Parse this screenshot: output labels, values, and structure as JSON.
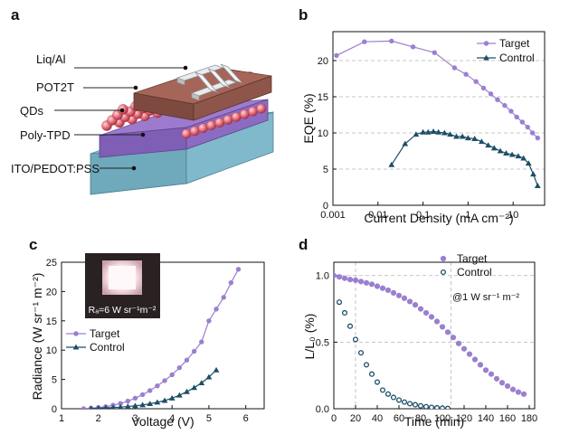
{
  "panel_labels": [
    "a",
    "b",
    "c",
    "d"
  ],
  "device": {
    "layers": [
      "Liq/Al",
      "POT2T",
      "QDs",
      "Poly-TPD",
      "ITO/PEDOT:PSS"
    ]
  },
  "colors": {
    "target": "#9b7fd0",
    "control": "#1d4e68",
    "grid": "#b5b5b5"
  },
  "chart_data": [
    {
      "type": "line",
      "panel": "b",
      "xlabel": "Current Density (mA cm⁻²)",
      "ylabel": "EQE (%)",
      "x_scale": "log",
      "xlim": [
        0.001,
        50
      ],
      "ylim": [
        0,
        24
      ],
      "xticks": [
        "0.001",
        "0.01",
        "0.1",
        "1",
        "10"
      ],
      "yticks": [
        "0",
        "5",
        "10",
        "15",
        "20"
      ],
      "grid": true,
      "legend": "top-right",
      "series": [
        {
          "name": "Target",
          "marker": "circle",
          "x": [
            0.0012,
            0.005,
            0.02,
            0.06,
            0.18,
            0.5,
            0.9,
            1.5,
            2.2,
            3.2,
            4.5,
            6.5,
            9,
            12,
            16,
            21,
            27,
            35
          ],
          "y": [
            20.7,
            22.6,
            22.7,
            21.9,
            21.1,
            19.0,
            18.1,
            17.1,
            16.2,
            15.4,
            14.6,
            13.8,
            13.0,
            12.2,
            11.5,
            10.8,
            10.0,
            9.3
          ]
        },
        {
          "name": "Control",
          "marker": "triangle",
          "x": [
            0.02,
            0.04,
            0.07,
            0.1,
            0.13,
            0.17,
            0.22,
            0.3,
            0.4,
            0.55,
            0.75,
            1.0,
            1.4,
            2.0,
            2.8,
            3.8,
            5.2,
            7,
            9.5,
            13,
            17,
            22,
            28,
            35
          ],
          "y": [
            5.6,
            8.5,
            9.8,
            10.1,
            10.1,
            10.2,
            10.1,
            10.0,
            9.8,
            9.5,
            9.5,
            9.3,
            9.2,
            8.8,
            8.3,
            7.9,
            7.5,
            7.2,
            7.0,
            6.8,
            6.5,
            5.8,
            4.3,
            2.7
          ]
        }
      ]
    },
    {
      "type": "line",
      "panel": "c",
      "xlabel": "Voltage (V)",
      "ylabel": "Radiance (W sr⁻¹ m⁻²)",
      "xlim": [
        1,
        6.5
      ],
      "ylim": [
        0,
        25
      ],
      "xticks": [
        "1",
        "2",
        "3",
        "4",
        "5",
        "6"
      ],
      "yticks": [
        "0",
        "5",
        "10",
        "15",
        "20",
        "25"
      ],
      "legend": "lower-left",
      "inset_text": "Rₐ=6 W sr⁻¹m⁻²",
      "series": [
        {
          "name": "Target",
          "marker": "circle",
          "x": [
            1.6,
            1.8,
            2.0,
            2.2,
            2.4,
            2.6,
            2.8,
            3.0,
            3.2,
            3.4,
            3.6,
            3.8,
            4.0,
            4.2,
            4.4,
            4.6,
            4.8,
            5.0,
            5.2,
            5.4,
            5.6,
            5.8
          ],
          "y": [
            0.0,
            0.1,
            0.2,
            0.35,
            0.6,
            0.9,
            1.3,
            1.8,
            2.4,
            3.1,
            3.9,
            4.8,
            5.8,
            7.0,
            8.3,
            9.8,
            11.4,
            15.0,
            17.0,
            19.0,
            21.5,
            23.8
          ]
        },
        {
          "name": "Control",
          "marker": "triangle",
          "x": [
            1.8,
            2.0,
            2.2,
            2.4,
            2.6,
            2.8,
            3.0,
            3.2,
            3.4,
            3.6,
            3.8,
            4.0,
            4.2,
            4.4,
            4.6,
            4.8,
            5.0,
            5.2
          ],
          "y": [
            0.05,
            0.1,
            0.15,
            0.2,
            0.28,
            0.38,
            0.5,
            0.65,
            0.85,
            1.1,
            1.4,
            1.8,
            2.3,
            2.9,
            3.6,
            4.4,
            5.4,
            6.6
          ]
        }
      ]
    },
    {
      "type": "scatter",
      "panel": "d",
      "xlabel": "Time (min)",
      "ylabel": "L/L₀ (%)",
      "xlim": [
        0,
        185
      ],
      "ylim": [
        0,
        1.1
      ],
      "xticks": [
        "0",
        "20",
        "40",
        "60",
        "80",
        "100",
        "120",
        "140",
        "160",
        "180"
      ],
      "yticks": [
        "0.0",
        "0.5",
        "1.0"
      ],
      "grid": true,
      "legend": "top-right",
      "annotation": "@1 W sr⁻¹ m⁻²",
      "series": [
        {
          "name": "Target",
          "marker": "filled-circle",
          "x": [
            0,
            5,
            10,
            15,
            20,
            25,
            30,
            35,
            40,
            45,
            50,
            55,
            60,
            65,
            70,
            75,
            80,
            85,
            90,
            95,
            100,
            105,
            110,
            115,
            120,
            125,
            130,
            135,
            140,
            145,
            150,
            155,
            160,
            165,
            170,
            175
          ],
          "y": [
            1.0,
            0.99,
            0.98,
            0.97,
            0.965,
            0.955,
            0.945,
            0.935,
            0.92,
            0.905,
            0.89,
            0.87,
            0.85,
            0.83,
            0.805,
            0.78,
            0.75,
            0.72,
            0.69,
            0.655,
            0.615,
            0.575,
            0.535,
            0.49,
            0.45,
            0.41,
            0.37,
            0.33,
            0.29,
            0.26,
            0.225,
            0.195,
            0.17,
            0.145,
            0.125,
            0.11
          ]
        },
        {
          "name": "Control",
          "marker": "open-circle",
          "x": [
            5,
            10,
            15,
            20,
            25,
            30,
            35,
            40,
            45,
            50,
            55,
            60,
            65,
            70,
            75,
            80,
            85,
            90,
            95,
            100,
            105
          ],
          "y": [
            0.8,
            0.72,
            0.62,
            0.52,
            0.42,
            0.33,
            0.26,
            0.2,
            0.14,
            0.11,
            0.085,
            0.065,
            0.05,
            0.038,
            0.03,
            0.022,
            0.015,
            0.01,
            0.007,
            0.004,
            0.002
          ]
        }
      ]
    }
  ]
}
